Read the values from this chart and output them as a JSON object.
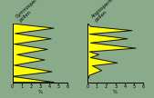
{
  "background_color": "#8aab8a",
  "panel1": {
    "xlabel": "%",
    "xlim": [
      0,
      6
    ],
    "xticks": [
      0,
      1,
      2,
      3,
      4,
      5,
      6
    ],
    "poly_x": [
      0,
      4.5,
      0,
      3.0,
      0,
      4.5,
      0,
      1.5,
      0,
      4.0,
      0,
      2.0,
      0,
      4.5,
      0,
      0.3,
      0
    ],
    "poly_y": [
      10,
      9.0,
      8.0,
      7.0,
      6.0,
      5.0,
      4.5,
      4.0,
      3.5,
      2.5,
      2.0,
      1.5,
      1.0,
      0.5,
      0.0,
      0.0,
      10
    ],
    "fill_color": "#ffff00",
    "edge_color": "#111111"
  },
  "panel2": {
    "xlabel": "%",
    "xlim": [
      0,
      6
    ],
    "xticks": [
      0,
      1,
      2,
      3,
      4,
      5,
      6
    ],
    "poly_x": [
      0,
      5.0,
      0,
      4.5,
      0,
      5.5,
      0,
      1.0,
      0,
      3.5,
      0,
      0.5,
      0,
      1.5,
      0,
      0.0,
      0
    ],
    "poly_y": [
      10,
      9.5,
      9.0,
      7.5,
      7.0,
      5.5,
      5.0,
      4.5,
      4.0,
      3.0,
      2.5,
      2.0,
      1.5,
      0.5,
      0.0,
      0.0,
      10
    ],
    "fill_color": "#ffff00",
    "edge_color": "#111111"
  },
  "title1_lines": [
    "Gymnospermae",
    "pollen"
  ],
  "title2_lines": [
    "Angiospermae",
    "pollen"
  ],
  "title_fontsize": 3.8,
  "tick_fontsize": 3.5,
  "label_fontsize": 4.0
}
